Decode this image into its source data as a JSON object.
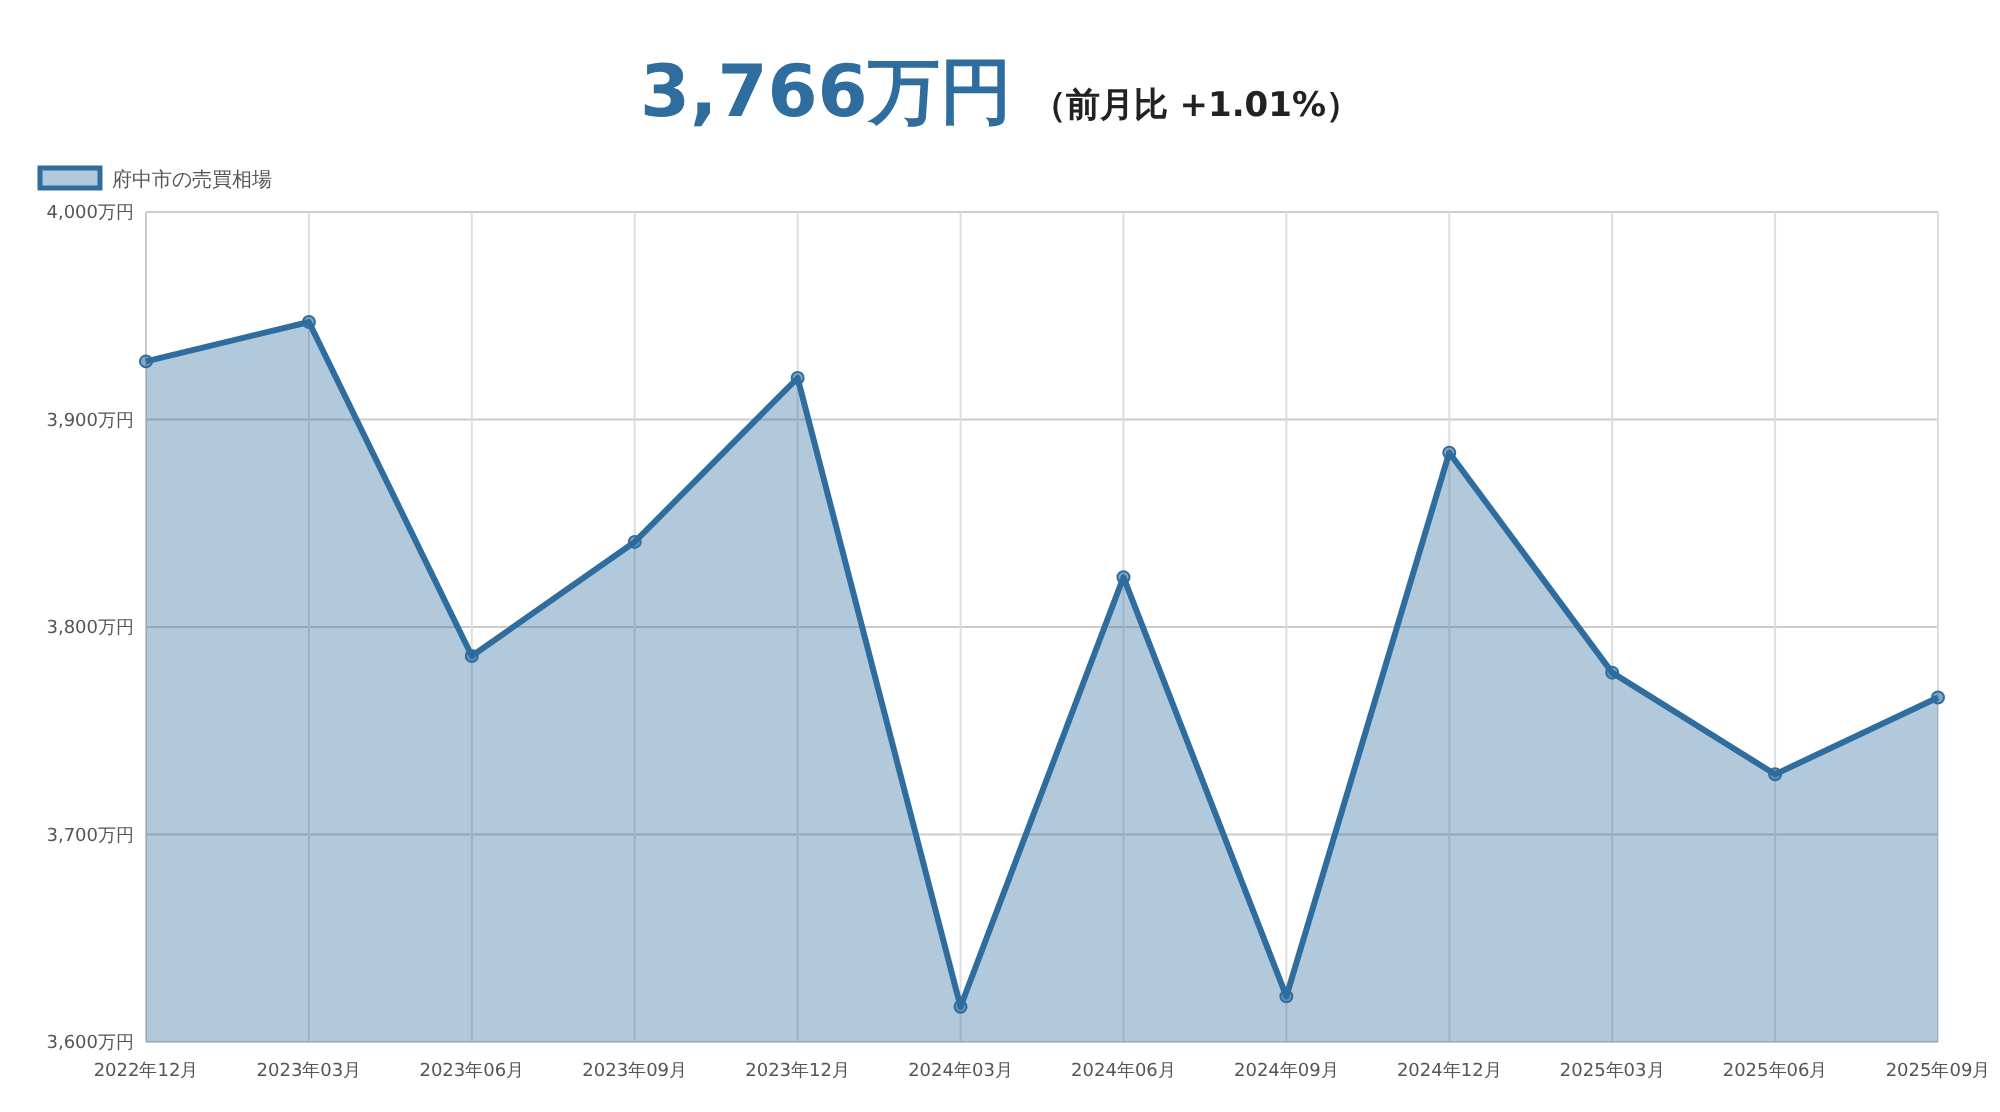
{
  "chart_data": {
    "type": "area",
    "title": "3,766万円",
    "subtitle": "（前月比 +1.01%）",
    "categories": [
      "2022年12月",
      "2023年03月",
      "2023年06月",
      "2023年09月",
      "2023年12月",
      "2024年03月",
      "2024年06月",
      "2024年09月",
      "2024年12月",
      "2025年03月",
      "2025年06月",
      "2025年09月"
    ],
    "series": [
      {
        "name": "府中市の売買相場",
        "color": "#2f6d9e",
        "values": [
          3928,
          3947,
          3786,
          3841,
          3920,
          3617,
          3824,
          3622,
          3884,
          3778,
          3729,
          3766
        ]
      }
    ],
    "ylim": [
      3600,
      4000
    ],
    "yticks": [
      {
        "value": 3600,
        "label": "3,600万円"
      },
      {
        "value": 3700,
        "label": "3,700万円"
      },
      {
        "value": 3800,
        "label": "3,800万円"
      },
      {
        "value": 3900,
        "label": "3,900万円"
      },
      {
        "value": 4000,
        "label": "4,000万円"
      }
    ],
    "grid": true,
    "legend": "top left",
    "marker": "circle"
  }
}
